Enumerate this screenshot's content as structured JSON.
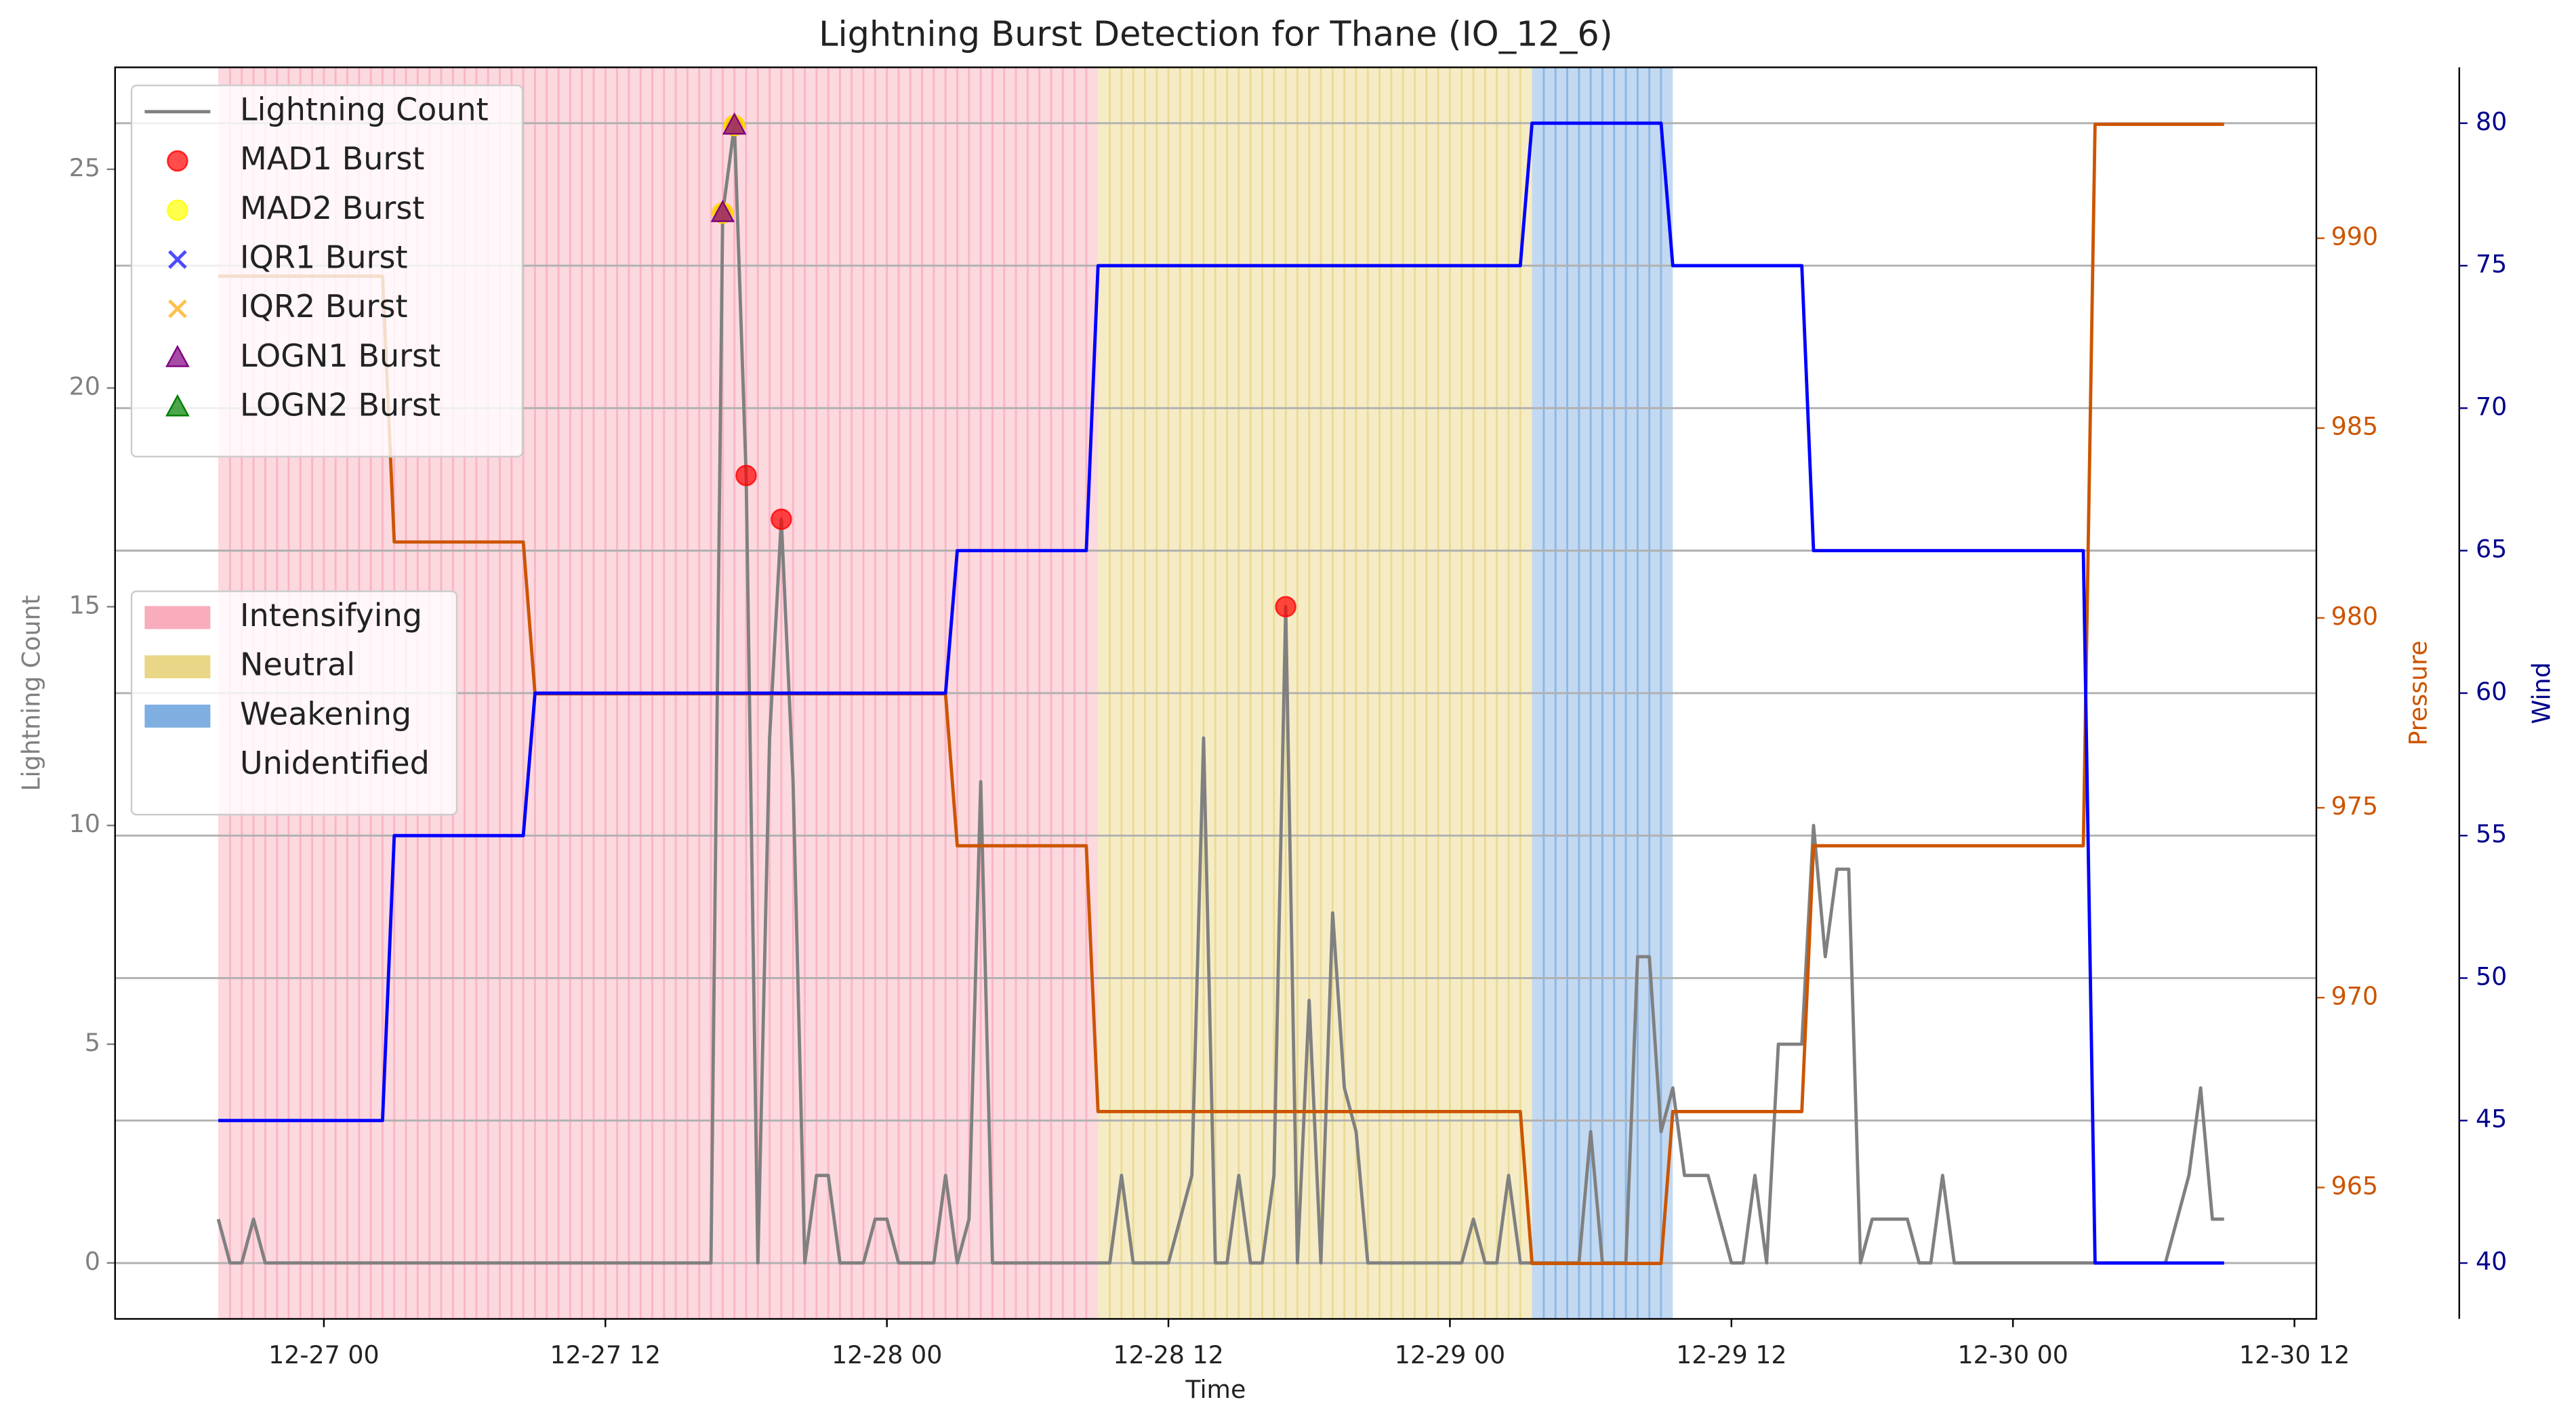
{
  "chart_data": {
    "type": "line",
    "title": "Lightning Burst Detection for Thane (IO_12_6)",
    "x_label": "Time",
    "y_label": "Lightning Count",
    "y2_label": "Pressure",
    "y3_label": "Wind",
    "xlim": [
      "12-26 15:06",
      "12-30 12:56"
    ],
    "xticks": [
      {
        "value": "12-27 00:00",
        "label": "12-27 00"
      },
      {
        "value": "12-27 12:00",
        "label": "12-27 12"
      },
      {
        "value": "12-28 00:00",
        "label": "12-28 00"
      },
      {
        "value": "12-28 12:00",
        "label": "12-28 12"
      },
      {
        "value": "12-29 00:00",
        "label": "12-29 00"
      },
      {
        "value": "12-29 12:00",
        "label": "12-29 12"
      },
      {
        "value": "12-30 00:00",
        "label": "12-30 00"
      },
      {
        "value": "12-30 12:00",
        "label": "12-30 12"
      }
    ],
    "ylim": [
      -1.28,
      27.33
    ],
    "yticks": [
      0,
      5,
      10,
      15,
      20,
      25
    ],
    "y2lim": [
      961.54,
      994.5
    ],
    "y2ticks": [
      965,
      970,
      975,
      980,
      985,
      990
    ],
    "y3lim": [
      38.04,
      81.96
    ],
    "y3ticks": [
      40,
      45,
      50,
      55,
      60,
      65,
      70,
      75,
      80
    ],
    "grid": "y3",
    "legend_loc": "upper left",
    "phase_legend_loc": "center left",
    "series": [
      {
        "name": "Lightning Count",
        "color": "#808080",
        "axis": "y",
        "x": [
          "12-26 19:30",
          "12-26 20:00",
          "12-26 20:30",
          "12-26 21:00",
          "12-26 21:30",
          "12-26 22:00",
          "12-26 22:30",
          "12-26 23:00",
          "12-26 23:30",
          "12-27 00:00",
          "12-27 00:30",
          "12-27 01:00",
          "12-27 01:30",
          "12-27 02:00",
          "12-27 02:30",
          "12-27 03:00",
          "12-27 03:30",
          "12-27 04:00",
          "12-27 04:30",
          "12-27 05:00",
          "12-27 05:30",
          "12-27 06:00",
          "12-27 06:30",
          "12-27 07:00",
          "12-27 07:30",
          "12-27 08:00",
          "12-27 08:30",
          "12-27 09:00",
          "12-27 09:30",
          "12-27 10:00",
          "12-27 10:30",
          "12-27 11:00",
          "12-27 11:30",
          "12-27 12:00",
          "12-27 12:30",
          "12-27 13:00",
          "12-27 13:30",
          "12-27 14:00",
          "12-27 14:30",
          "12-27 15:00",
          "12-27 15:30",
          "12-27 16:00",
          "12-27 16:30",
          "12-27 17:00",
          "12-27 17:30",
          "12-27 18:00",
          "12-27 18:30",
          "12-27 19:00",
          "12-27 19:30",
          "12-27 20:00",
          "12-27 20:30",
          "12-27 21:00",
          "12-27 21:30",
          "12-27 22:00",
          "12-27 22:30",
          "12-27 23:00",
          "12-27 23:30",
          "12-28 00:00",
          "12-28 00:30",
          "12-28 01:00",
          "12-28 01:30",
          "12-28 02:00",
          "12-28 02:30",
          "12-28 03:00",
          "12-28 03:30",
          "12-28 04:00",
          "12-28 04:30",
          "12-28 05:00",
          "12-28 05:30",
          "12-28 06:00",
          "12-28 06:30",
          "12-28 07:00",
          "12-28 07:30",
          "12-28 08:00",
          "12-28 08:30",
          "12-28 09:00",
          "12-28 09:30",
          "12-28 10:00",
          "12-28 10:30",
          "12-28 11:00",
          "12-28 11:30",
          "12-28 12:00",
          "12-28 12:30",
          "12-28 13:00",
          "12-28 13:30",
          "12-28 14:00",
          "12-28 14:30",
          "12-28 15:00",
          "12-28 15:30",
          "12-28 16:00",
          "12-28 16:30",
          "12-28 17:00",
          "12-28 17:30",
          "12-28 18:00",
          "12-28 18:30",
          "12-28 19:00",
          "12-28 19:30",
          "12-28 20:00",
          "12-28 20:30",
          "12-28 21:00",
          "12-28 21:30",
          "12-28 22:00",
          "12-28 22:30",
          "12-28 23:00",
          "12-28 23:30",
          "12-29 00:00",
          "12-29 00:30",
          "12-29 01:00",
          "12-29 01:30",
          "12-29 02:00",
          "12-29 02:30",
          "12-29 03:00",
          "12-29 03:30",
          "12-29 04:00",
          "12-29 04:30",
          "12-29 05:00",
          "12-29 05:30",
          "12-29 06:00",
          "12-29 06:30",
          "12-29 07:00",
          "12-29 07:30",
          "12-29 08:00",
          "12-29 08:30",
          "12-29 09:00",
          "12-29 09:30",
          "12-29 10:00",
          "12-29 10:30",
          "12-29 11:00",
          "12-29 11:30",
          "12-29 12:00",
          "12-29 12:30",
          "12-29 13:00",
          "12-29 13:30",
          "12-29 14:00",
          "12-29 14:30",
          "12-29 15:00",
          "12-29 15:30",
          "12-29 16:00",
          "12-29 16:30",
          "12-29 17:00",
          "12-29 17:30",
          "12-29 18:00",
          "12-29 18:30",
          "12-29 19:00",
          "12-29 19:30",
          "12-29 20:00",
          "12-29 20:30",
          "12-29 21:00",
          "12-29 21:30",
          "12-29 22:00",
          "12-29 22:30",
          "12-29 23:00",
          "12-29 23:30",
          "12-30 00:00",
          "12-30 00:30",
          "12-30 01:00",
          "12-30 01:30",
          "12-30 02:00",
          "12-30 02:30",
          "12-30 03:00",
          "12-30 03:30",
          "12-30 04:00",
          "12-30 04:30",
          "12-30 05:00",
          "12-30 05:30",
          "12-30 06:00",
          "12-30 06:30",
          "12-30 07:00",
          "12-30 07:30",
          "12-30 08:00",
          "12-30 08:30",
          "12-30 09:00"
        ],
        "values": [
          1,
          0,
          0,
          1,
          0,
          0,
          0,
          0,
          0,
          0,
          0,
          0,
          0,
          0,
          0,
          0,
          0,
          0,
          0,
          0,
          0,
          0,
          0,
          0,
          0,
          0,
          0,
          0,
          0,
          0,
          0,
          0,
          0,
          0,
          0,
          0,
          0,
          0,
          0,
          0,
          0,
          0,
          0,
          24,
          26,
          18,
          0,
          12,
          17,
          11,
          0,
          2,
          2,
          0,
          0,
          0,
          1,
          1,
          0,
          0,
          0,
          0,
          2,
          0,
          1,
          11,
          0,
          0,
          0,
          0,
          0,
          0,
          0,
          0,
          0,
          0,
          0,
          2,
          0,
          0,
          0,
          0,
          1,
          2,
          12,
          0,
          0,
          2,
          0,
          0,
          2,
          15,
          0,
          6,
          0,
          8,
          4,
          3,
          0,
          0,
          0,
          0,
          0,
          0,
          0,
          0,
          0,
          1,
          0,
          0,
          2,
          0,
          0,
          0,
          0,
          0,
          0,
          3,
          0,
          0,
          0,
          7,
          7,
          3,
          4,
          2,
          2,
          2,
          1,
          0,
          0,
          2,
          0,
          5,
          5,
          5,
          10,
          7,
          9,
          9,
          0,
          1,
          1,
          1,
          1,
          0,
          0,
          2,
          0,
          0,
          0,
          0,
          0,
          0,
          0,
          0,
          0,
          0,
          0,
          0,
          0,
          0,
          0,
          0,
          0,
          0,
          0,
          1,
          2,
          4,
          1,
          1
        ]
      },
      {
        "name": "MAD1 Burst",
        "type": "scatter",
        "marker": "circle",
        "color": "#ff0000",
        "axis": "y",
        "x": [
          "12-27 17:00",
          "12-27 17:30",
          "12-27 18:00",
          "12-27 19:30",
          "12-28 17:00"
        ],
        "values": [
          24,
          26,
          18,
          17,
          15
        ]
      },
      {
        "name": "MAD2 Burst",
        "type": "scatter",
        "marker": "circle",
        "color": "#ffff00",
        "axis": "y",
        "x": [
          "12-27 17:00",
          "12-27 17:30"
        ],
        "values": [
          24,
          26
        ]
      },
      {
        "name": "IQR1 Burst",
        "type": "scatter",
        "marker": "x",
        "color": "#0000ff",
        "axis": "y",
        "x": [],
        "values": []
      },
      {
        "name": "IQR2 Burst",
        "type": "scatter",
        "marker": "x",
        "color": "#ffa500",
        "axis": "y",
        "x": [],
        "values": []
      },
      {
        "name": "LOGN1 Burst",
        "type": "scatter",
        "marker": "triangle",
        "color": "#800080",
        "axis": "y",
        "x": [
          "12-27 17:00",
          "12-27 17:30"
        ],
        "values": [
          24,
          26
        ]
      },
      {
        "name": "LOGN2 Burst",
        "type": "scatter",
        "marker": "triangle",
        "color": "#008000",
        "axis": "y",
        "x": [],
        "values": []
      },
      {
        "color": "#cc5500",
        "axis": "y2",
        "x": [
          "12-26 19:30",
          "12-27 02:30",
          "12-27 03:00",
          "12-27 08:30",
          "12-27 09:00",
          "12-28 02:30",
          "12-28 03:00",
          "12-28 08:30",
          "12-28 09:00",
          "12-29 03:00",
          "12-29 03:30",
          "12-29 09:00",
          "12-29 09:30",
          "12-29 15:00",
          "12-29 15:30",
          "12-30 03:00",
          "12-30 03:30",
          "12-30 09:00"
        ],
        "values": [
          989,
          989,
          982,
          982,
          978,
          978,
          974,
          974,
          967,
          967,
          963,
          963,
          967,
          967,
          974,
          974,
          993,
          993
        ]
      },
      {
        "color": "#0000ff",
        "axis": "y3",
        "x": [
          "12-26 19:30",
          "12-27 02:30",
          "12-27 03:00",
          "12-27 08:30",
          "12-27 09:00",
          "12-28 02:30",
          "12-28 03:00",
          "12-28 08:30",
          "12-28 09:00",
          "12-29 03:00",
          "12-29 03:30",
          "12-29 09:00",
          "12-29 09:30",
          "12-29 15:00",
          "12-29 15:30",
          "12-30 03:00",
          "12-30 03:30",
          "12-30 09:00"
        ],
        "values": [
          45,
          45,
          55,
          55,
          60,
          60,
          65,
          65,
          75,
          75,
          80,
          80,
          75,
          75,
          65,
          65,
          40,
          40
        ]
      }
    ],
    "phases": [
      {
        "name": "Intensifying",
        "color": "#f9a8b8",
        "start": "12-26 19:30",
        "end": "12-28 09:00"
      },
      {
        "name": "Neutral",
        "color": "#e8d480",
        "start": "12-28 09:00",
        "end": "12-29 03:30"
      },
      {
        "name": "Weakening",
        "color": "#78aadf",
        "start": "12-29 03:30",
        "end": "12-29 09:30"
      },
      {
        "name": "Unidentified",
        "color": "#ffffff"
      }
    ]
  }
}
